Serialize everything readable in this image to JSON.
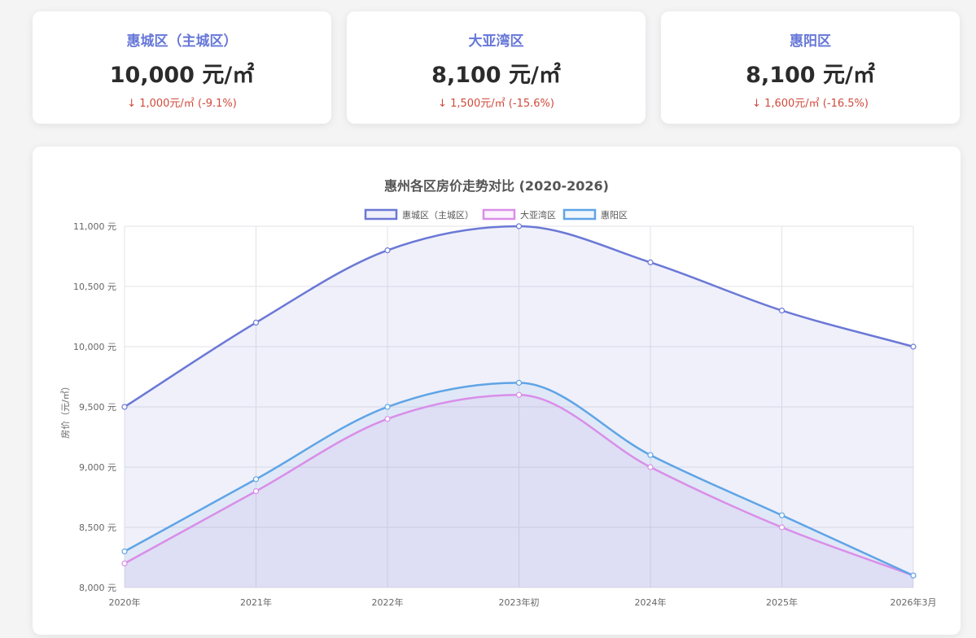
{
  "cards": [
    {
      "name": "惠城区（主城区）",
      "price": "10,000 元/㎡",
      "change": "↓ 1,000元/㎡ (-9.1%)"
    },
    {
      "name": "大亚湾区",
      "price": "8,100 元/㎡",
      "change": "↓ 1,500元/㎡ (-15.6%)"
    },
    {
      "name": "惠阳区",
      "price": "8,100 元/㎡",
      "change": "↓ 1,600元/㎡ (-16.5%)"
    }
  ],
  "colors": {
    "huicheng": "#6b78d6",
    "dayawan": "#d98ee8",
    "huiyang": "#5fa4e6",
    "change": "#d04a3c"
  },
  "chart_data": {
    "type": "area",
    "title": "惠州各区房价走势对比 (2020-2026)",
    "xlabel": "",
    "ylabel": "房价（元/㎡）",
    "categories": [
      "2020年",
      "2021年",
      "2022年",
      "2023年初",
      "2024年",
      "2025年",
      "2026年3月"
    ],
    "ylim": [
      8000,
      11000
    ],
    "yticks": [
      8000,
      8500,
      9000,
      9500,
      10000,
      10500,
      11000
    ],
    "ytick_labels": [
      "8,000 元",
      "8,500 元",
      "9,000 元",
      "9,500 元",
      "10,000 元",
      "10,500 元",
      "11,000 元"
    ],
    "legend_position": "top",
    "grid": true,
    "series": [
      {
        "name": "惠城区（主城区）",
        "values": [
          9500,
          10200,
          10800,
          11000,
          10700,
          10300,
          10000
        ]
      },
      {
        "name": "大亚湾区",
        "values": [
          8200,
          8800,
          9400,
          9600,
          9000,
          8500,
          8100
        ]
      },
      {
        "name": "惠阳区",
        "values": [
          8300,
          8900,
          9500,
          9700,
          9100,
          8600,
          8100
        ]
      }
    ]
  }
}
